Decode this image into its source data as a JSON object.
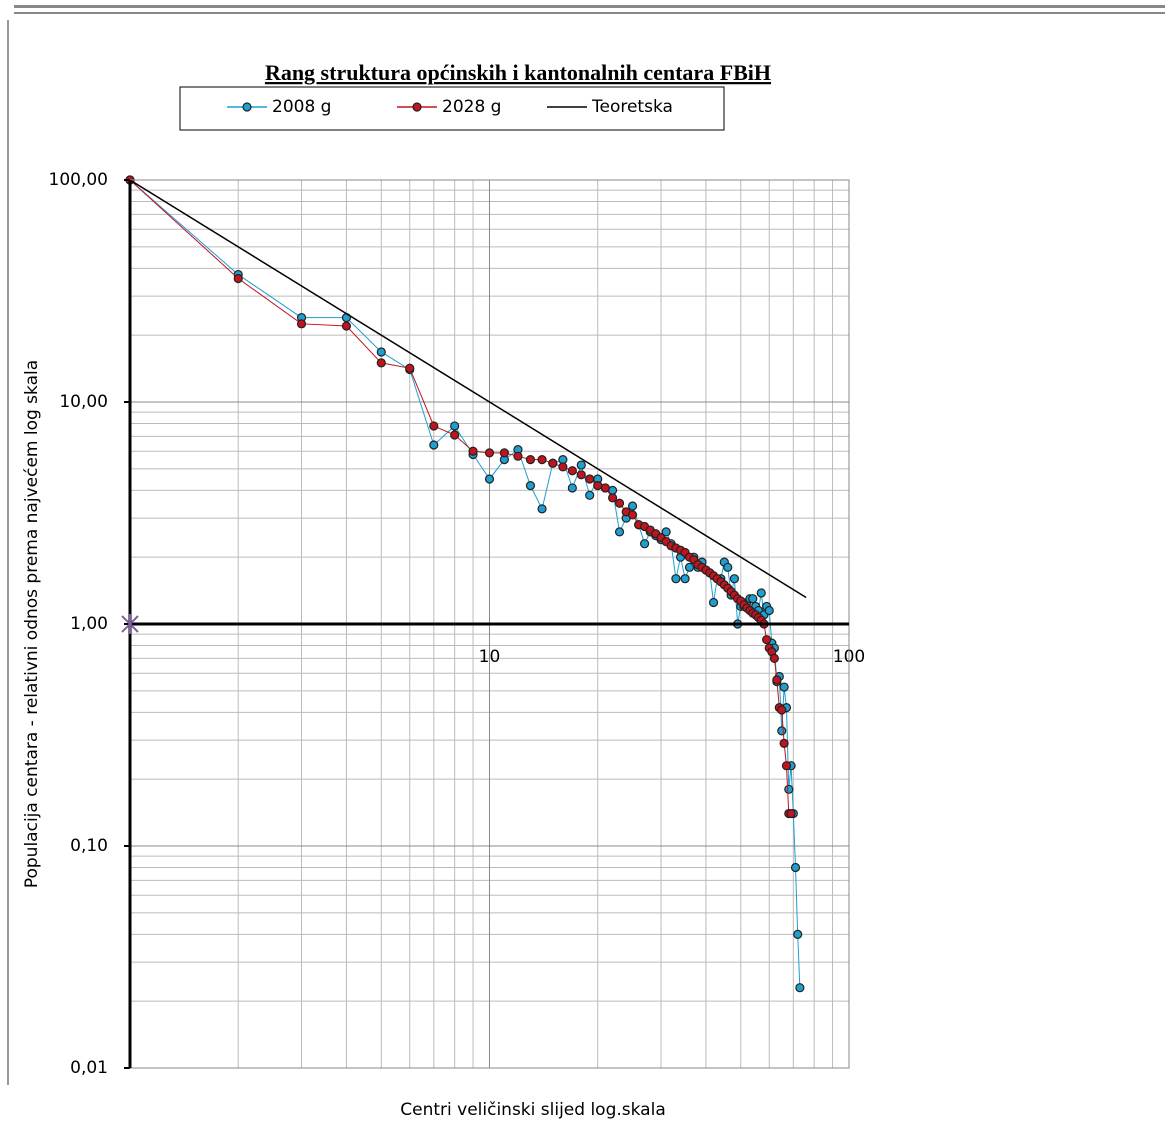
{
  "chart_data": {
    "type": "line",
    "title": "Rang struktura općinskih i kantonalnih  centara FBiH",
    "x_label": "Centri veličinski slijed log.skala",
    "y_label": "Populacija centara - relativni odnos prema najvećem log skala",
    "xscale": "log",
    "yscale": "log",
    "grid": true,
    "x_axis_crosses": 1,
    "xlim": [
      1,
      100
    ],
    "xticks": [
      10,
      100
    ],
    "ylim": [
      0.01,
      100
    ],
    "yticks": [
      {
        "value": 0.01,
        "label": "0,01"
      },
      {
        "value": 0.1,
        "label": "0,10"
      },
      {
        "value": 1,
        "label": "1,00"
      },
      {
        "value": 10,
        "label": "10,00"
      },
      {
        "value": 100,
        "label": "100,00"
      }
    ],
    "legend": "top",
    "series": [
      {
        "name": "2008 g",
        "color": "#1f9fd0",
        "marker": true,
        "x": [
          1,
          2,
          3,
          4,
          5,
          6,
          7,
          8,
          9,
          10,
          11,
          12,
          13,
          14,
          15,
          16,
          17,
          18,
          19,
          20,
          21,
          22,
          23,
          24,
          25,
          26,
          27,
          28,
          29,
          30,
          31,
          32,
          33,
          34,
          35,
          36,
          37,
          38,
          39,
          40,
          41,
          42,
          43,
          44,
          45,
          46,
          47,
          48,
          49,
          50,
          51,
          52,
          53,
          54,
          55,
          56,
          57,
          58,
          59,
          60,
          61,
          62,
          63,
          64,
          65,
          66,
          67,
          68,
          69,
          70,
          71,
          72,
          73
        ],
        "values": [
          100,
          37.5,
          24,
          24,
          16.8,
          14,
          6.4,
          7.8,
          5.8,
          4.5,
          5.5,
          6.1,
          4.2,
          3.3,
          5.3,
          5.5,
          4.1,
          5.2,
          3.8,
          4.5,
          4.1,
          4.0,
          2.6,
          3.0,
          3.4,
          2.8,
          2.3,
          2.6,
          2.5,
          2.4,
          2.6,
          2.3,
          1.6,
          2.0,
          1.6,
          1.8,
          2.0,
          1.8,
          1.9,
          1.75,
          1.7,
          1.25,
          1.6,
          1.6,
          1.9,
          1.8,
          1.35,
          1.6,
          1.0,
          1.2,
          1.2,
          1.25,
          1.3,
          1.3,
          1.2,
          1.15,
          1.38,
          1.1,
          1.2,
          1.15,
          0.82,
          0.78,
          0.55,
          0.58,
          0.33,
          0.52,
          0.42,
          0.18,
          0.23,
          0.14,
          0.08,
          0.04,
          0.023
        ]
      },
      {
        "name": "2028 g",
        "color": "#c0141e",
        "marker": true,
        "x": [
          1,
          2,
          3,
          4,
          5,
          6,
          7,
          8,
          9,
          10,
          11,
          12,
          13,
          14,
          15,
          16,
          17,
          18,
          19,
          20,
          21,
          22,
          23,
          24,
          25,
          26,
          27,
          28,
          29,
          30,
          31,
          32,
          33,
          34,
          35,
          36,
          37,
          38,
          39,
          40,
          41,
          42,
          43,
          44,
          45,
          46,
          47,
          48,
          49,
          50,
          51,
          52,
          53,
          54,
          55,
          56,
          57,
          58,
          59,
          60,
          61,
          62,
          63,
          64,
          65,
          66,
          67,
          68,
          69
        ],
        "values": [
          100,
          36,
          22.5,
          22,
          15,
          14.2,
          7.8,
          7.1,
          6.0,
          5.9,
          5.9,
          5.7,
          5.5,
          5.5,
          5.3,
          5.1,
          4.9,
          4.7,
          4.5,
          4.2,
          4.1,
          3.7,
          3.5,
          3.2,
          3.1,
          2.8,
          2.75,
          2.65,
          2.55,
          2.45,
          2.35,
          2.25,
          2.2,
          2.15,
          2.1,
          2.0,
          1.95,
          1.85,
          1.8,
          1.75,
          1.7,
          1.65,
          1.6,
          1.55,
          1.5,
          1.45,
          1.4,
          1.35,
          1.3,
          1.27,
          1.22,
          1.18,
          1.15,
          1.12,
          1.1,
          1.07,
          1.04,
          1.0,
          0.85,
          0.78,
          0.75,
          0.7,
          0.56,
          0.42,
          0.41,
          0.29,
          0.23,
          0.14,
          0.14
        ]
      },
      {
        "name": "Teoretska",
        "color": "#000000",
        "marker": false,
        "x": [
          1,
          76
        ],
        "values": [
          100,
          1.3158
        ]
      }
    ]
  }
}
